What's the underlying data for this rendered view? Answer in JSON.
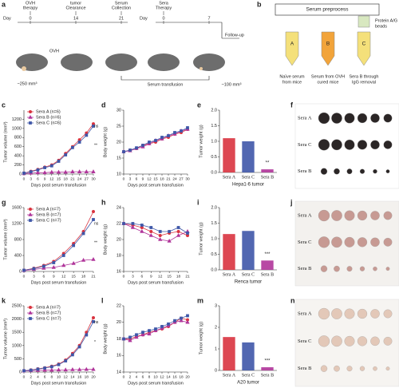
{
  "diagram": {
    "a": {
      "panel": "a",
      "steps": [
        [
          "OVH",
          "therapy"
        ],
        [
          "tumor",
          "Clearance"
        ],
        [
          "Serum",
          "Collection"
        ],
        [
          "Sera",
          "Therapy"
        ]
      ],
      "timeline1": {
        "label": "Day",
        "days": [
          "0",
          "14",
          "21"
        ]
      },
      "timeline2": {
        "label": "Day",
        "days": [
          "0",
          "7"
        ]
      },
      "follow_up": "Follow-up",
      "ovh": "OVH",
      "tumor_size_1": "~250 mm³",
      "transfusion": "Serum transfusion",
      "tumor_size_2": "~100 mm³"
    },
    "b": {
      "panel": "b",
      "title": "Serum preprocess",
      "beads": [
        "Protein A/G",
        "beads"
      ],
      "tubes": [
        {
          "letter": "A",
          "caption": [
            "Naïve serum",
            "from mice"
          ]
        },
        {
          "letter": "B",
          "caption": [
            "Serum from OVH",
            "cured mice"
          ]
        },
        {
          "letter": "C",
          "caption": [
            "Sera B through",
            "IgG removal"
          ]
        }
      ]
    }
  },
  "chart_data": [
    {
      "type": "line",
      "panel": "c",
      "ylabel": "Tumor volume (mm³)",
      "xlabel": "Days post serum transfusion",
      "x": [
        0,
        3,
        6,
        9,
        12,
        15,
        18,
        21,
        24,
        27,
        30
      ],
      "xlim": [
        0,
        30
      ],
      "xticks": [
        0,
        3,
        6,
        9,
        12,
        15,
        18,
        21,
        24,
        27,
        30
      ],
      "ylim": [
        0,
        1400
      ],
      "yticks": [
        0,
        200,
        400,
        600,
        800,
        1000,
        1200
      ],
      "legend": "upper left",
      "annotations": [
        "ns",
        "**"
      ],
      "series": [
        {
          "name": "Sera A (n=6)",
          "color": "#d9333f",
          "marker": "circle",
          "values": [
            20,
            60,
            100,
            150,
            200,
            300,
            450,
            600,
            750,
            900,
            1100
          ]
        },
        {
          "name": "Sera B (n=6)",
          "color": "#b0359a",
          "marker": "triangle",
          "values": [
            10,
            20,
            30,
            30,
            40,
            40,
            40,
            50,
            50,
            50,
            50
          ]
        },
        {
          "name": "Sera C (n=6)",
          "color": "#3f57a8",
          "marker": "square",
          "values": [
            20,
            50,
            90,
            140,
            180,
            280,
            420,
            580,
            700,
            850,
            1050
          ]
        }
      ]
    },
    {
      "type": "line",
      "panel": "d",
      "ylabel": "Body weight (g)",
      "xlabel": "Days post serum transfusion",
      "x": [
        0,
        3,
        6,
        9,
        12,
        15,
        18,
        21,
        24,
        27,
        30
      ],
      "xlim": [
        0,
        30
      ],
      "xticks": [
        0,
        3,
        6,
        9,
        12,
        15,
        18,
        21,
        24,
        27,
        30
      ],
      "ylim": [
        10,
        30
      ],
      "yticks": [
        10,
        15,
        20,
        25,
        30
      ],
      "series": [
        {
          "color": "#d9333f",
          "marker": "circle",
          "values": [
            17,
            17.5,
            18,
            19,
            19.5,
            20,
            21,
            21.5,
            22.5,
            23,
            24
          ]
        },
        {
          "color": "#b0359a",
          "marker": "triangle",
          "values": [
            17,
            17.3,
            18,
            18.5,
            19.5,
            20.5,
            21,
            22,
            22.5,
            23.5,
            24
          ]
        },
        {
          "color": "#3f57a8",
          "marker": "square",
          "values": [
            17,
            17.5,
            18.2,
            19,
            20,
            20.5,
            21.5,
            22,
            23,
            23.5,
            24.5
          ]
        }
      ]
    },
    {
      "type": "bar",
      "panel": "e",
      "ylabel": "Tumor weight (g)",
      "xlabel": "Hepa1-6 tumor",
      "categories": [
        "Sera A",
        "Sera C",
        "Sera B"
      ],
      "values": [
        1.1,
        1.0,
        0.1
      ],
      "colors": [
        "#d9333f",
        "#3f57a8",
        "#b0359a"
      ],
      "ylim": [
        0,
        2
      ],
      "yticks": [
        {
          "value": 0,
          "label": "0.0"
        },
        0.5,
        {
          "value": 1,
          "label": "1.0"
        },
        1.5,
        {
          "value": 2,
          "label": "2.0"
        }
      ],
      "annotations": [
        "**"
      ]
    },
    {
      "type": "line",
      "panel": "g",
      "ylabel": "Tumor volume (mm³)",
      "xlabel": "Days post serum transfusion",
      "x": [
        0,
        3,
        6,
        9,
        12,
        15,
        18,
        21
      ],
      "xlim": [
        0,
        21
      ],
      "xticks": [
        0,
        3,
        6,
        9,
        12,
        15,
        18,
        21
      ],
      "ylim": [
        0,
        1600
      ],
      "yticks": [
        0,
        400,
        800,
        1200,
        1600
      ],
      "legend": "upper left",
      "annotations": [
        "ns",
        "**"
      ],
      "series": [
        {
          "name": "Sera A (n=7)",
          "color": "#d9333f",
          "marker": "circle",
          "values": [
            30,
            80,
            150,
            250,
            450,
            700,
            1000,
            1500
          ]
        },
        {
          "name": "Sera B (n=7)",
          "color": "#b0359a",
          "marker": "triangle",
          "values": [
            20,
            50,
            80,
            100,
            150,
            200,
            280,
            300
          ]
        },
        {
          "name": "Sera C (n=7)",
          "color": "#3f57a8",
          "marker": "square",
          "values": [
            30,
            70,
            130,
            220,
            400,
            650,
            950,
            1300
          ]
        }
      ]
    },
    {
      "type": "line",
      "panel": "h",
      "ylabel": "Body weight (g)",
      "xlabel": "Days post serum transfusion",
      "x": [
        0,
        3,
        6,
        9,
        12,
        15,
        18,
        21
      ],
      "xlim": [
        0,
        21
      ],
      "xticks": [
        0,
        3,
        6,
        9,
        12,
        15,
        18,
        21
      ],
      "ylim": [
        16,
        24
      ],
      "yticks": [
        16,
        18,
        20,
        22,
        24
      ],
      "series": [
        {
          "color": "#d9333f",
          "marker": "circle",
          "values": [
            22,
            21.8,
            21.5,
            21,
            20.5,
            20.8,
            21,
            20.5
          ]
        },
        {
          "color": "#b0359a",
          "marker": "triangle",
          "values": [
            22,
            21.5,
            21,
            20.5,
            20,
            19.8,
            20.5,
            21
          ]
        },
        {
          "color": "#3f57a8",
          "marker": "square",
          "values": [
            22,
            22,
            21.8,
            21.5,
            21,
            21,
            21.5,
            20.8
          ]
        }
      ]
    },
    {
      "type": "bar",
      "panel": "i",
      "ylabel": "Tumor weight (g)",
      "xlabel": "Renca tumor",
      "categories": [
        "Sera A",
        "Sera C",
        "Sera B"
      ],
      "values": [
        1.15,
        1.25,
        0.3
      ],
      "colors": [
        "#d9333f",
        "#3f57a8",
        "#b0359a"
      ],
      "ylim": [
        0,
        2
      ],
      "yticks": [
        {
          "value": 0,
          "label": "0.0"
        },
        0.5,
        {
          "value": 1,
          "label": "1.0"
        },
        1.5,
        {
          "value": 2,
          "label": "2.0"
        }
      ],
      "annotations": [
        "***"
      ]
    },
    {
      "type": "line",
      "panel": "k",
      "ylabel": "Tumor volume (mm³)",
      "xlabel": "Days post serum transfusion",
      "x": [
        0,
        2,
        4,
        6,
        8,
        10,
        12,
        14,
        16,
        18,
        20
      ],
      "xlim": [
        0,
        20
      ],
      "xticks": [
        0,
        2,
        4,
        6,
        8,
        10,
        12,
        14,
        16,
        18,
        20
      ],
      "ylim": [
        0,
        2500
      ],
      "yticks": [
        0,
        500,
        1000,
        1500,
        2000,
        2500
      ],
      "legend": "upper left",
      "annotations": [
        "ns",
        "*"
      ],
      "series": [
        {
          "name": "Sera A (n=7)",
          "color": "#d9333f",
          "marker": "circle",
          "values": [
            50,
            80,
            120,
            160,
            220,
            300,
            450,
            700,
            1000,
            1500,
            2050
          ]
        },
        {
          "name": "Sera B (n=7)",
          "color": "#b0359a",
          "marker": "triangle",
          "values": [
            40,
            50,
            60,
            70,
            70,
            80,
            80,
            90,
            90,
            100,
            100
          ]
        },
        {
          "name": "Sera C (n=7)",
          "color": "#3f57a8",
          "marker": "square",
          "values": [
            50,
            70,
            110,
            150,
            200,
            280,
            420,
            650,
            950,
            1400,
            1900
          ]
        }
      ]
    },
    {
      "type": "line",
      "panel": "l",
      "ylabel": "Body weight (g)",
      "xlabel": "Days post serum transfusion",
      "x": [
        0,
        2,
        4,
        6,
        8,
        10,
        12,
        14,
        16,
        18,
        20
      ],
      "xlim": [
        0,
        20
      ],
      "xticks": [
        0,
        2,
        4,
        6,
        8,
        10,
        12,
        14,
        16,
        18,
        20
      ],
      "ylim": [
        14,
        22
      ],
      "yticks": [
        14,
        16,
        18,
        20,
        22
      ],
      "series": [
        {
          "color": "#d9333f",
          "marker": "circle",
          "values": [
            18,
            18,
            18.3,
            18.5,
            18.8,
            19,
            19.2,
            19.5,
            20,
            20.5,
            20.3
          ]
        },
        {
          "color": "#b0359a",
          "marker": "triangle",
          "values": [
            18,
            17.8,
            18.2,
            18.5,
            18.6,
            19,
            19.3,
            19.6,
            20,
            20.2,
            20
          ]
        },
        {
          "color": "#3f57a8",
          "marker": "square",
          "values": [
            18,
            18.2,
            18.5,
            18.8,
            19,
            19.2,
            19.5,
            19.8,
            20.2,
            20.5,
            20.8
          ]
        }
      ]
    },
    {
      "type": "bar",
      "panel": "m",
      "ylabel": "Tumor weight (g)",
      "xlabel": "A20 tumor",
      "categories": [
        "Sera A",
        "Sera C",
        "Sera B"
      ],
      "values": [
        1.55,
        1.3,
        0.15
      ],
      "colors": [
        "#d9333f",
        "#3f57a8",
        "#b0359a"
      ],
      "ylim": [
        0,
        3
      ],
      "yticks": [
        0,
        1,
        2,
        3
      ],
      "annotations": [
        "***"
      ]
    }
  ],
  "photos": [
    {
      "panel": "f",
      "rows": [
        "Sera A",
        "Sera C",
        "Sera B"
      ],
      "colors": [
        "#d9333f",
        "#3f57a8",
        "#b0359a"
      ]
    },
    {
      "panel": "j",
      "rows": [
        "Sera A",
        "Sera C",
        "Sera B"
      ],
      "colors": [
        "#d9333f",
        "#3f57a8",
        "#b0359a"
      ]
    },
    {
      "panel": "n",
      "rows": [
        "Sera A",
        "Sera C",
        "Sera B"
      ],
      "colors": [
        "#d9333f",
        "#3f57a8",
        "#b0359a"
      ]
    }
  ]
}
